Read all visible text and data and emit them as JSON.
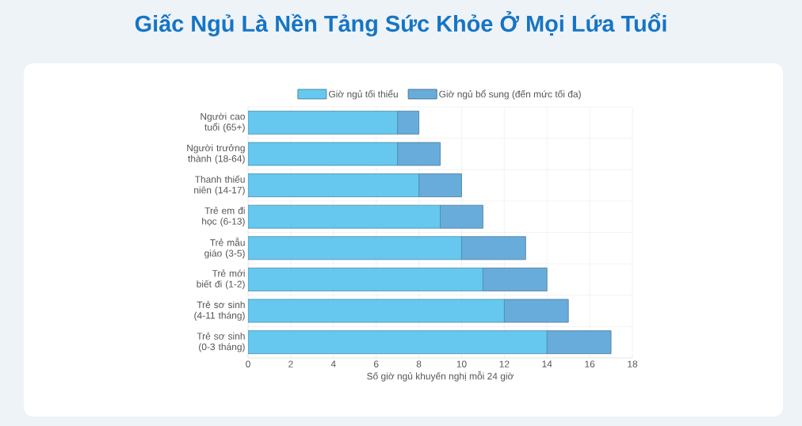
{
  "chart_data": {
    "type": "bar",
    "orientation": "horizontal",
    "stacked": true,
    "title": "Giấc Ngủ Là Nền Tảng Sức Khỏe Ở Mọi Lứa Tuổi",
    "xlabel": "Số giờ ngủ khuyến nghị mỗi 24 giờ",
    "categories": [
      "Người cao tuổi (65+)",
      "Người trưởng thành (18-64)",
      "Thanh thiếu niên (14-17)",
      "Trẻ em đi học (6-13)",
      "Trẻ mẫu giáo (3-5)",
      "Trẻ mới biết đi (1-2)",
      "Trẻ sơ sinh (4-11 tháng)",
      "Trẻ sơ sinh (0-3 tháng)"
    ],
    "series": [
      {
        "name": "Giờ ngủ tối thiểu",
        "color": "#66c8ef",
        "values": [
          7,
          7,
          8,
          9,
          10,
          11,
          12,
          14
        ]
      },
      {
        "name": "Giờ ngủ bổ sung (đến mức tối đa)",
        "color": "#68acdb",
        "values": [
          1,
          2,
          2,
          2,
          3,
          3,
          3,
          3
        ]
      }
    ],
    "xlim": [
      0,
      18
    ],
    "xticks": [
      0,
      2,
      4,
      6,
      8,
      10,
      12,
      14,
      16,
      18
    ],
    "grid": true,
    "legend": "top"
  }
}
